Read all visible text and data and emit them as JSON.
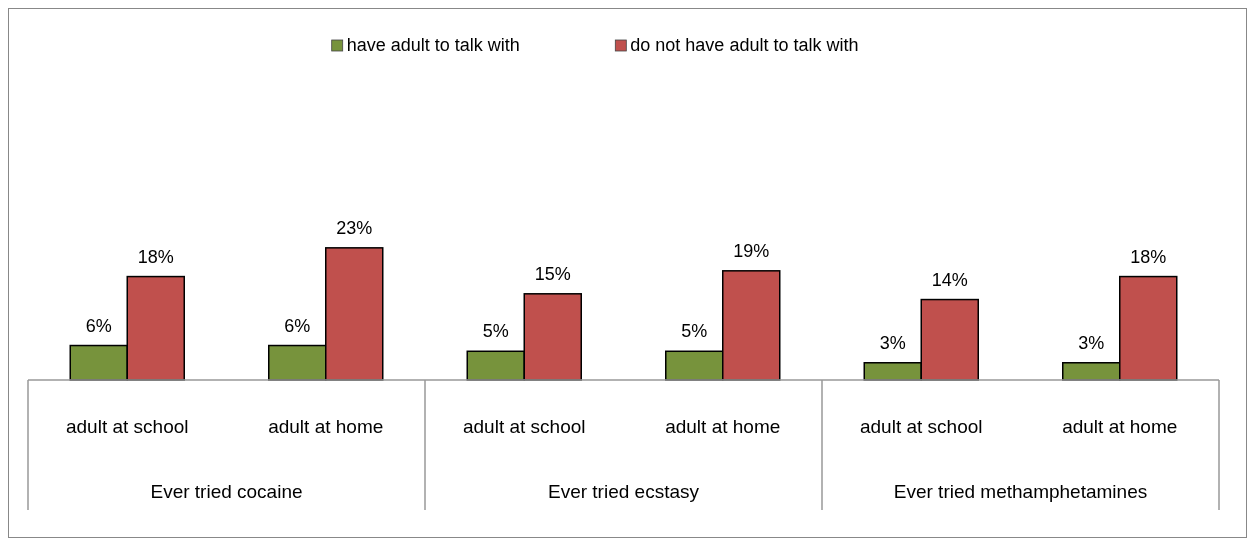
{
  "chart_data": {
    "type": "bar",
    "categories": [
      "adult at school",
      "adult at home",
      "adult at school",
      "adult at home",
      "adult at school",
      "adult at home"
    ],
    "series": [
      {
        "name": "have adult to talk with",
        "color": "#77933c",
        "values": [
          6,
          6,
          5,
          5,
          3,
          3
        ],
        "value_labels": [
          "6%",
          "6%",
          "5%",
          "5%",
          "3%",
          "3%"
        ]
      },
      {
        "name": "do not have adult to talk with",
        "color": "#c0504d",
        "values": [
          18,
          23,
          15,
          19,
          14,
          18
        ],
        "value_labels": [
          "18%",
          "23%",
          "15%",
          "19%",
          "14%",
          "18%"
        ]
      }
    ],
    "legend": "top",
    "annotations": [
      "Ever tried cocaine",
      "Ever tried ecstasy",
      "Ever tried methamphetamines"
    ]
  }
}
